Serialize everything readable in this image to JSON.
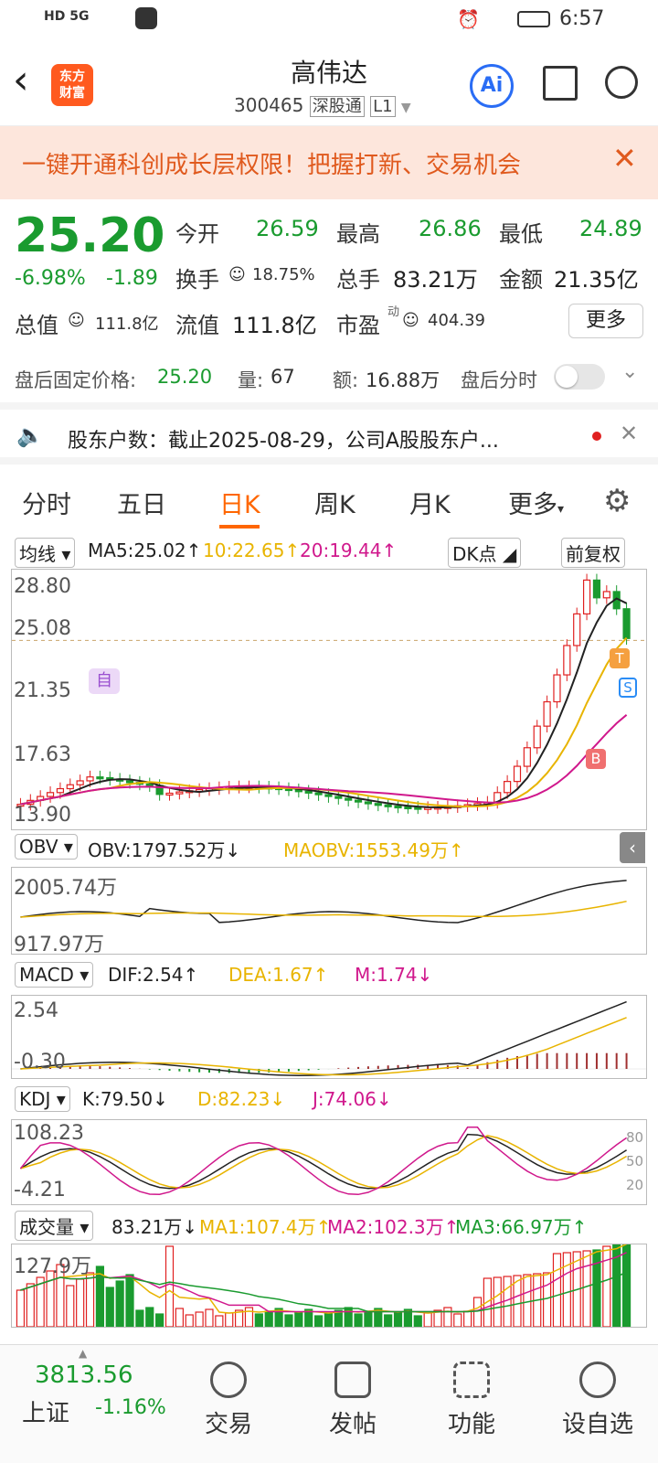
{
  "status": {
    "time": "6:57",
    "left_icons": "HD 5G"
  },
  "header": {
    "title": "高伟达",
    "code": "300465",
    "tag1": "深股通",
    "tag2": "L1",
    "logo": "东方\n财富",
    "ai": "Ai"
  },
  "banner": {
    "text": "一键开通科创成长层权限！把握打新、交易机会"
  },
  "quote": {
    "price": "25.20",
    "change_pct": "-6.98%",
    "change": "-1.89",
    "open_label": "今开",
    "open": "26.59",
    "high_label": "最高",
    "high": "26.86",
    "low_label": "最低",
    "low": "24.89",
    "turnover_label": "换手",
    "turnover": "18.75%",
    "volume_label": "总手",
    "volume": "83.21万",
    "amount_label": "金额",
    "amount": "21.35亿",
    "mcap_label": "总值",
    "mcap": "111.8亿",
    "float_label": "流值",
    "float": "111.8亿",
    "pe_label": "市盈",
    "pe_sup": "动",
    "pe": "404.39",
    "more": "更多"
  },
  "afterhours": {
    "label": "盘后固定价格:",
    "price": "25.20",
    "vol_label": "量:",
    "vol": "67",
    "amt_label": "额:",
    "amt": "16.88万",
    "toggle_label": "盘后分时"
  },
  "notice": {
    "text": "股东户数：截止2025-08-29，公司A股股东户..."
  },
  "tabs": {
    "items": [
      "分时",
      "五日",
      "日K",
      "周K",
      "月K",
      "更多"
    ],
    "active": 2
  },
  "kline": {
    "indicator": "均线",
    "ma5": "MA5:25.02↑",
    "ma10": "10:22.65↑",
    "ma20": "20:19.44↑",
    "dk": "DK点",
    "fq": "前复权",
    "yticks": [
      "28.80",
      "25.08",
      "21.35",
      "17.63",
      "13.90"
    ],
    "marker_zi": "自",
    "marker_b": "B",
    "marker_s": "S",
    "marker_t": "T"
  },
  "obv": {
    "name": "OBV",
    "val": "OBV:1797.52万↓",
    "ma": "MAOBV:1553.49万↑",
    "y1": "2005.74万",
    "y2": "917.97万"
  },
  "macd": {
    "name": "MACD",
    "dif": "DIF:2.54↑",
    "dea": "DEA:1.67↑",
    "m": "M:1.74↓",
    "y1": "2.54",
    "y2": "-0.30"
  },
  "kdj": {
    "name": "KDJ",
    "k": "K:79.50↓",
    "d": "D:82.23↓",
    "j": "J:74.06↓",
    "y1": "108.23",
    "y2": "-4.21",
    "l80": "80",
    "l50": "50",
    "l20": "20"
  },
  "vol": {
    "name": "成交量",
    "v": "83.21万↓",
    "ma1": "MA1:107.4万↑",
    "ma2": "MA2:102.3万↑",
    "ma3": "MA3:66.97万↑",
    "y1": "127.9万"
  },
  "bottom": {
    "index_val": "3813.56",
    "index_name": "上证",
    "index_chg": "-1.16%",
    "btn1": "交易",
    "btn2": "发帖",
    "btn3": "功能",
    "btn4": "设自选"
  },
  "colors": {
    "up": "#e02020",
    "down": "#1a9b2f",
    "accent": "#ff6600",
    "ma10": "#e8b400",
    "ma20": "#d0188c"
  }
}
